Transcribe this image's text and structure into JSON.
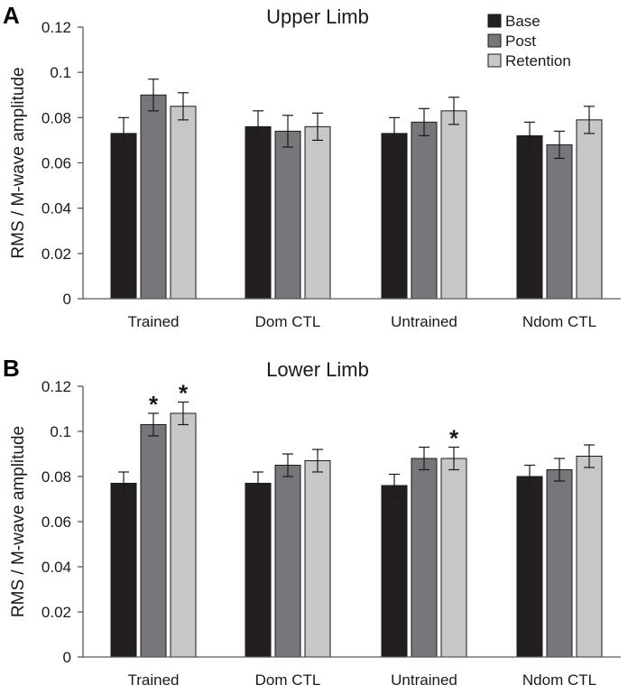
{
  "chart_data": [
    {
      "type": "bar",
      "panel_letter": "A",
      "title": "Upper Limb",
      "ylabel": "RMS / M-wave amplitude",
      "xlabel": "",
      "ylim": [
        0,
        0.12
      ],
      "yticks": [
        "0",
        "0.02",
        "0.04",
        "0.06",
        "0.08",
        "0.1",
        "0.12"
      ],
      "categories": [
        "Trained",
        "Dom CTL",
        "Untrained",
        "Ndom CTL"
      ],
      "legend_position": "top-right",
      "series": [
        {
          "name": "Base",
          "color": "#231f20",
          "values": [
            0.073,
            0.076,
            0.073,
            0.072
          ],
          "errors": [
            0.007,
            0.007,
            0.007,
            0.006
          ]
        },
        {
          "name": "Post",
          "color": "#77777b",
          "values": [
            0.09,
            0.074,
            0.078,
            0.068
          ],
          "errors": [
            0.007,
            0.007,
            0.006,
            0.006
          ]
        },
        {
          "name": "Retention",
          "color": "#c6c7c9",
          "values": [
            0.085,
            0.076,
            0.083,
            0.079
          ],
          "errors": [
            0.006,
            0.006,
            0.006,
            0.006
          ]
        }
      ],
      "significance": []
    },
    {
      "type": "bar",
      "panel_letter": "B",
      "title": "Lower Limb",
      "ylabel": "RMS / M-wave amplitude",
      "xlabel": "",
      "ylim": [
        0,
        0.12
      ],
      "yticks": [
        "0",
        "0.02",
        "0.04",
        "0.06",
        "0.08",
        "0.1",
        "0.12"
      ],
      "categories": [
        "Trained",
        "Dom CTL",
        "Untrained",
        "Ndom CTL"
      ],
      "series": [
        {
          "name": "Base",
          "color": "#231f20",
          "values": [
            0.077,
            0.077,
            0.076,
            0.08
          ],
          "errors": [
            0.005,
            0.005,
            0.005,
            0.005
          ]
        },
        {
          "name": "Post",
          "color": "#77777b",
          "values": [
            0.103,
            0.085,
            0.088,
            0.083
          ],
          "errors": [
            0.005,
            0.005,
            0.005,
            0.005
          ]
        },
        {
          "name": "Retention",
          "color": "#c6c7c9",
          "values": [
            0.108,
            0.087,
            0.088,
            0.089
          ],
          "errors": [
            0.005,
            0.005,
            0.005,
            0.005
          ]
        }
      ],
      "significance": [
        {
          "category": "Trained",
          "series": "Post",
          "label": "*"
        },
        {
          "category": "Trained",
          "series": "Retention",
          "label": "*"
        },
        {
          "category": "Untrained",
          "series": "Retention",
          "label": "*"
        }
      ]
    }
  ]
}
